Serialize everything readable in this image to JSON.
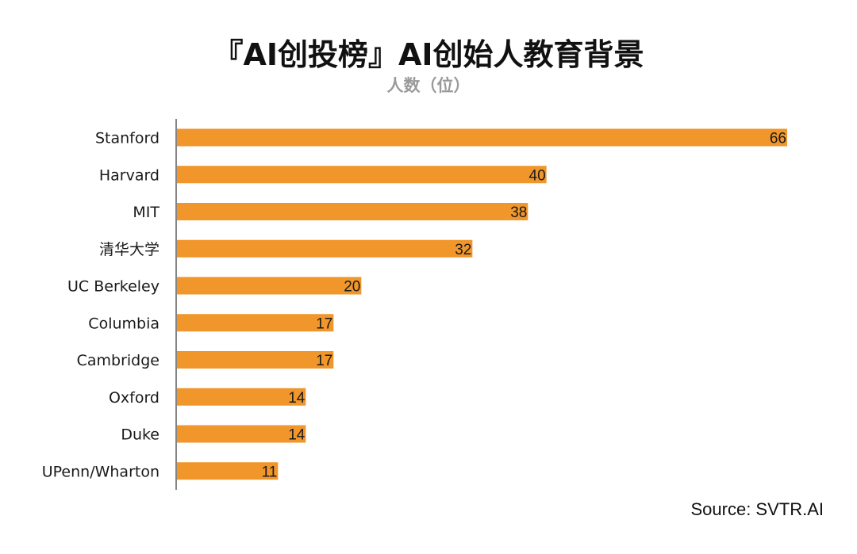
{
  "title": "『AI创投榜』AI创始人教育背景",
  "subtitle": "人数（位）",
  "source": "Source: SVTR.AI",
  "colors": {
    "bar": "#F0962A",
    "axis": "#333333",
    "label": "#1a1a1a"
  },
  "chart_data": {
    "type": "bar",
    "orientation": "horizontal",
    "title": "『AI创投榜』AI创始人教育背景",
    "subtitle": "人数（位）",
    "categories": [
      "Stanford",
      "Harvard",
      "MIT",
      "清华大学",
      "UC Berkeley",
      "Columbia",
      "Cambridge",
      "Oxford",
      "Duke",
      "UPenn/Wharton"
    ],
    "values": [
      66,
      40,
      38,
      32,
      20,
      17,
      17,
      14,
      14,
      11
    ],
    "xlim": [
      0,
      66
    ],
    "grid": false,
    "legend": "none",
    "data_labels": true
  }
}
